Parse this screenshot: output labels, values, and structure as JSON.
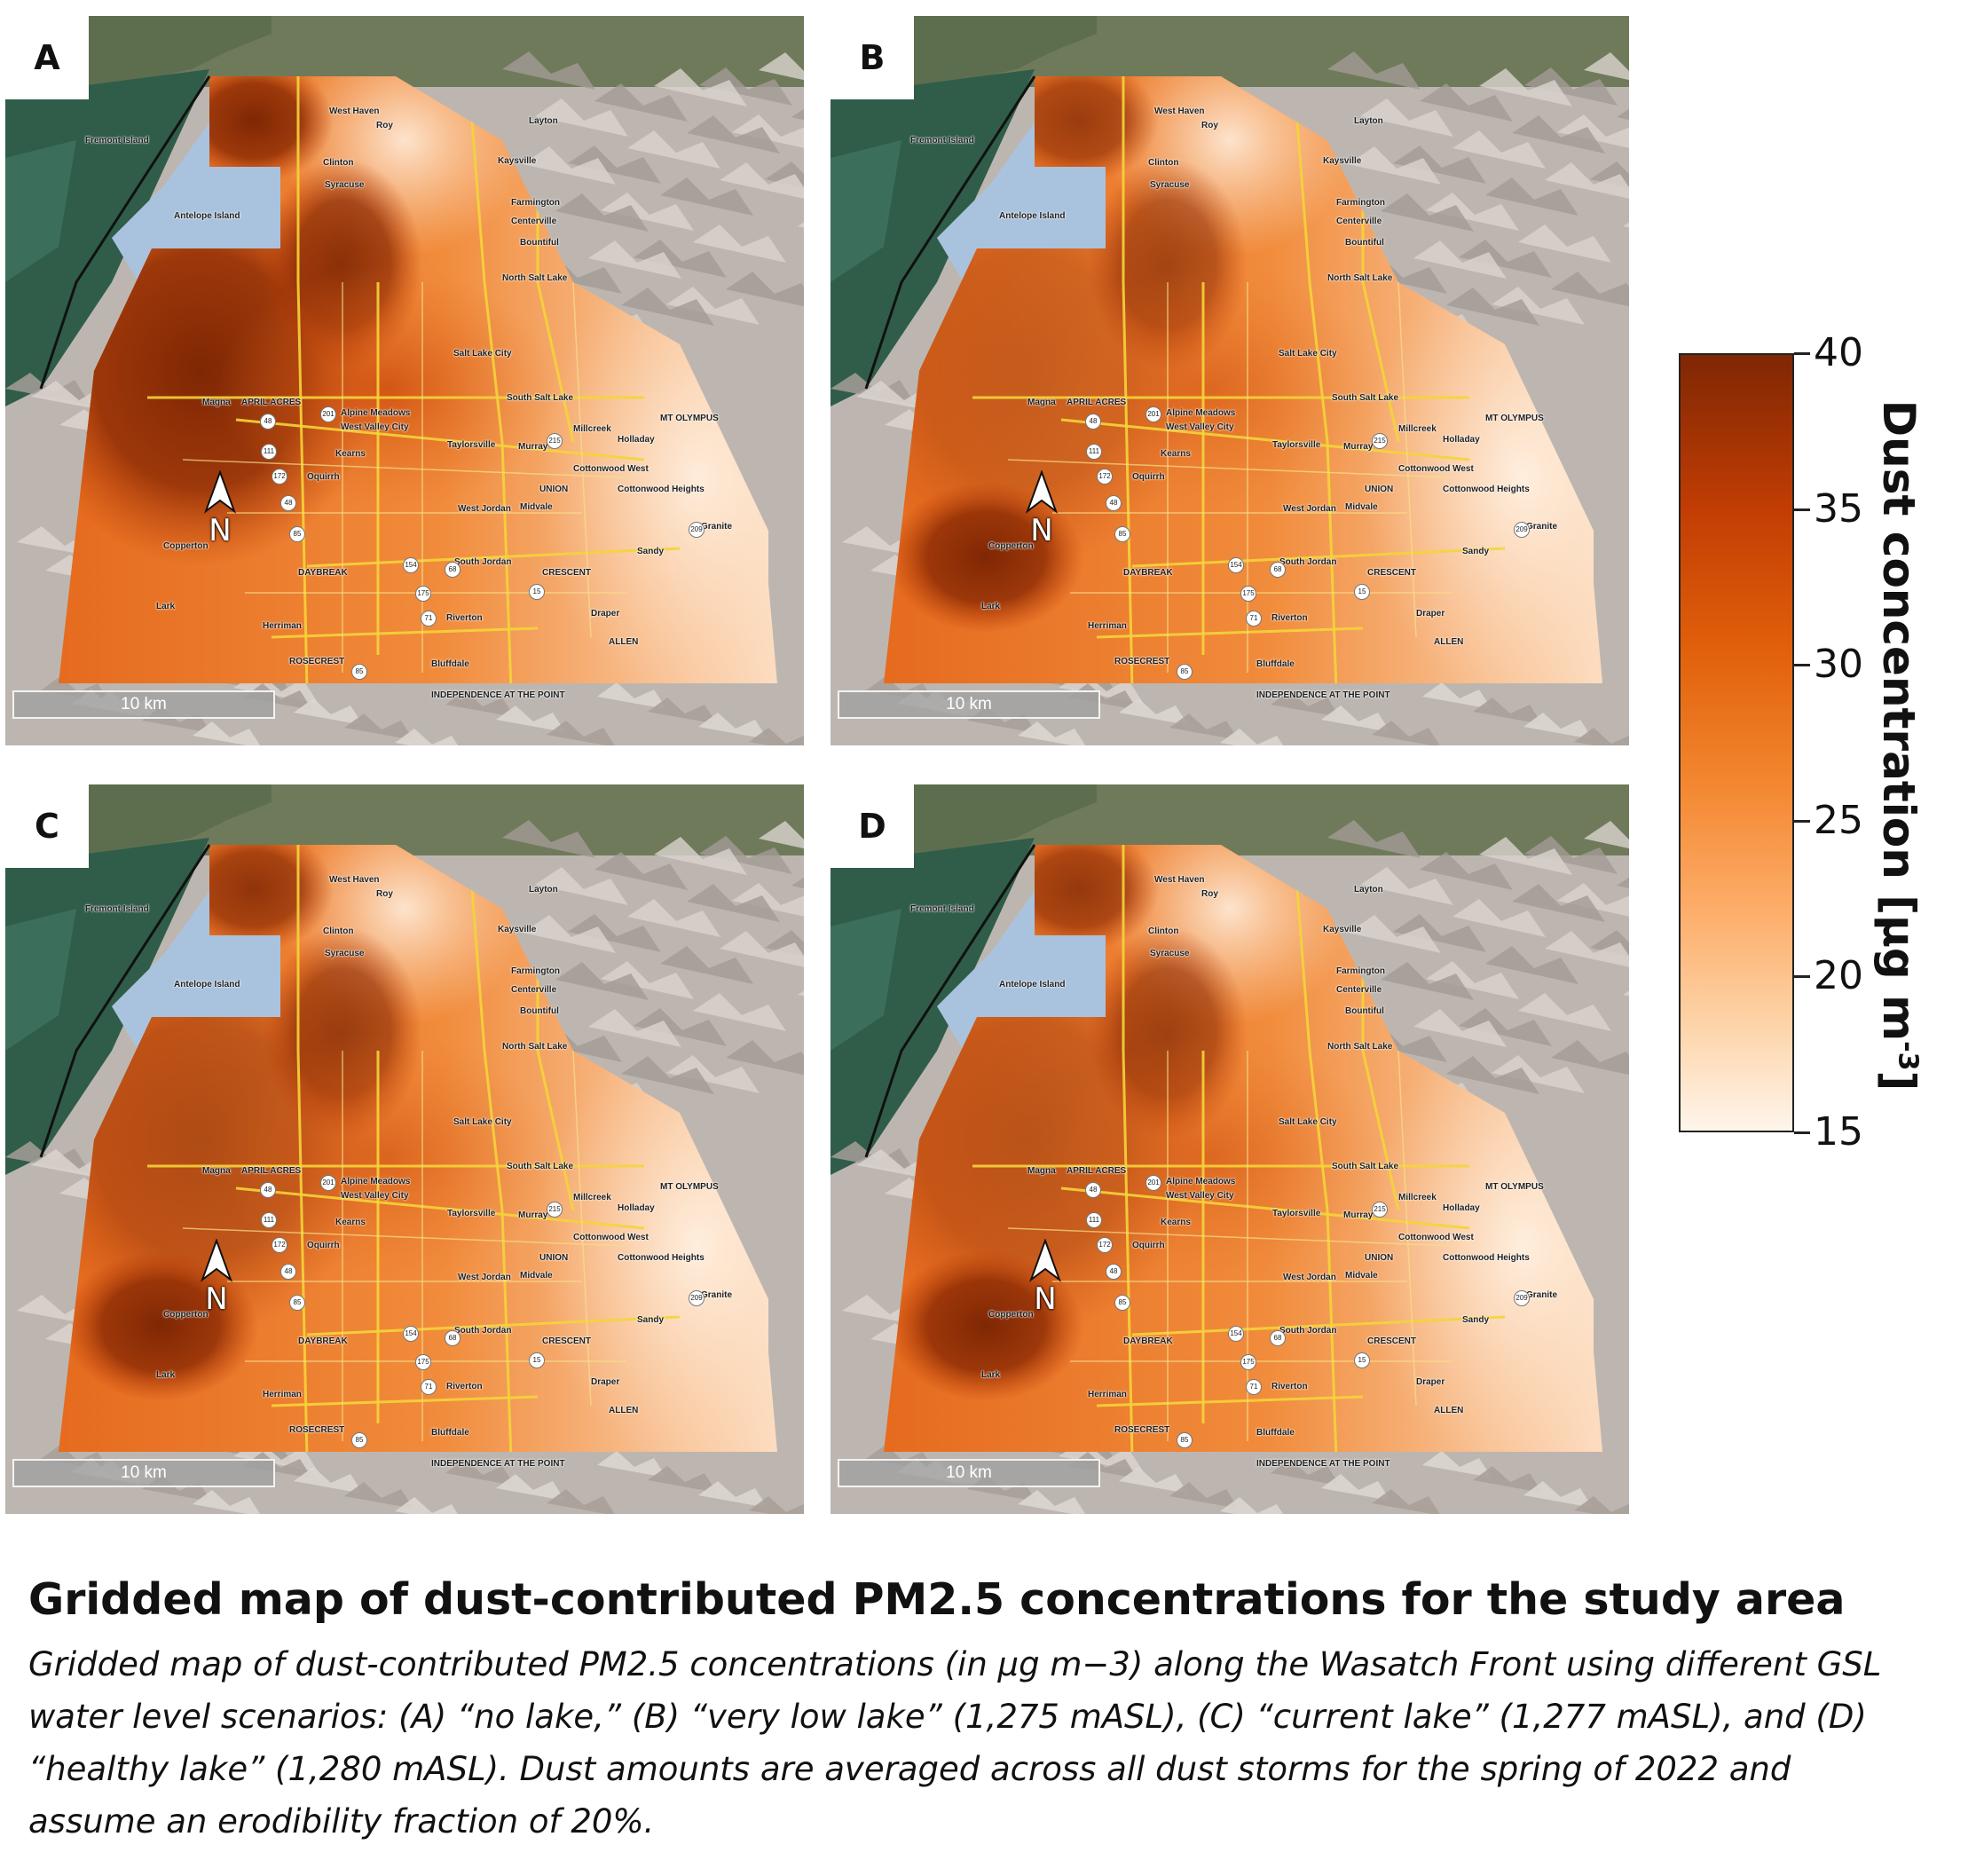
{
  "panels": [
    {
      "id": "A",
      "scenario": "no lake",
      "north_label": "N",
      "scale_label": "10 km"
    },
    {
      "id": "B",
      "scenario": "very low lake",
      "north_label": "N",
      "scale_label": "10 km"
    },
    {
      "id": "C",
      "scenario": "current lake",
      "north_label": "N",
      "scale_label": "10 km"
    },
    {
      "id": "D",
      "scenario": "healthy lake",
      "north_label": "N",
      "scale_label": "10 km"
    }
  ],
  "places": [
    "Magna",
    "APRIL ACRES",
    "Alpine Meadows",
    "West Valley City",
    "Salt Lake City",
    "South Salt Lake",
    "Millcreek",
    "Holladay",
    "MT OLYMPUS",
    "Kearns",
    "Taylorsville",
    "Murray",
    "Cottonwood West",
    "Cottonwood Heights",
    "UNION",
    "Oquirrh",
    "West Jordan",
    "Midvale",
    "Copperton",
    "South Jordan",
    "Sandy",
    "DAYBREAK",
    "CRESCENT",
    "Lark",
    "Herriman",
    "Riverton",
    "Draper",
    "ALLEN",
    "ROSECREST",
    "Bluffdale",
    "INDEPENDENCE AT THE POINT",
    "Granite",
    "Centerville",
    "Bountiful",
    "North Salt Lake",
    "Farmington",
    "Antelope Island",
    "Fremont Island",
    "Kaysville",
    "Layton",
    "Clinton",
    "West Haven",
    "Roy",
    "Syracuse"
  ],
  "road_shields": [
    "111",
    "201",
    "48",
    "85",
    "154",
    "175",
    "71",
    "68",
    "15",
    "215",
    "209",
    "172"
  ],
  "colorbar": {
    "label": "Dust concentration [μg m",
    "label_superscript": "-3",
    "label_close": "]",
    "min": 15,
    "max": 40,
    "ticks": [
      40,
      35,
      30,
      25,
      20,
      15
    ],
    "colors": [
      "#7f2704",
      "#c23d04",
      "#e1600b",
      "#f3862f",
      "#fdae6b",
      "#fdd8b0",
      "#fff5eb"
    ]
  },
  "caption": {
    "title": "Gridded map of dust-contributed PM2.5 concentrations for the study area",
    "body": "Gridded map of dust-contributed PM2.5 concentrations (in μg m−3) along the Wasatch Front using different GSL water level scenarios: (A) “no lake,” (B) “very low lake” (1,275 mASL), (C) “current lake” (1,277 mASL), and (D) “healthy lake” (1,280 mASL). Dust amounts are averaged across all dust storms for the spring of 2022 and assume an erodibility fraction of 20%."
  }
}
